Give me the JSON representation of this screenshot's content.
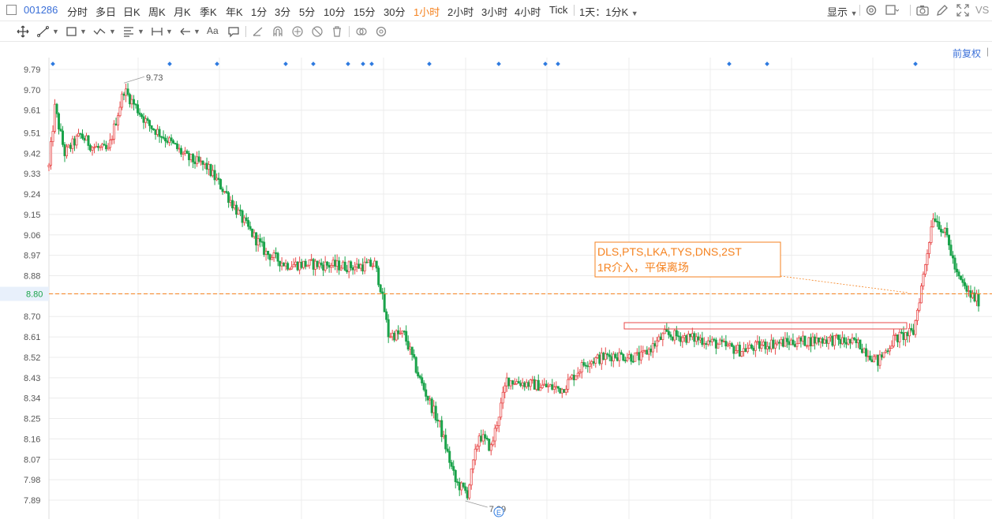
{
  "topbar": {
    "code": "001286",
    "periods": [
      "分时",
      "多日",
      "日K",
      "周K",
      "月K",
      "季K",
      "年K",
      "1分",
      "3分",
      "5分",
      "10分",
      "15分",
      "30分",
      "1小时",
      "2小时",
      "3小时",
      "4小时",
      "Tick"
    ],
    "active_period": "1小时",
    "range_label": "1天：1分K",
    "display_label": "显示",
    "vs_label": "VS"
  },
  "toolbar2": {
    "aa_label": "Aa"
  },
  "chart": {
    "restore_label": "前复权",
    "current_price_label": "8.80",
    "high_label": "9.73",
    "low_label": "7.89",
    "annotation_line1": "DLS,PTS,LKA,TYS,DNS,2ST",
    "annotation_line2": "1R介入，平保离场",
    "event_marker_label": "E"
  },
  "colors": {
    "up": "#e84a4a",
    "down": "#1aa34a",
    "accent": "#f5821f",
    "link": "#3a6fd8",
    "grid": "#ececec"
  },
  "chart_data": {
    "type": "candlestick",
    "y_ticks": [
      "9.79",
      "9.70",
      "9.61",
      "9.51",
      "9.42",
      "9.33",
      "9.24",
      "9.15",
      "9.06",
      "8.97",
      "8.88",
      "8.80",
      "8.70",
      "8.61",
      "8.52",
      "8.43",
      "8.34",
      "8.25",
      "8.16",
      "8.07",
      "7.98",
      "7.89"
    ],
    "ylim": [
      7.89,
      9.79
    ],
    "current_price": 8.8,
    "high": 9.73,
    "low": 7.89,
    "anchors": [
      [
        0,
        9.36
      ],
      [
        3,
        9.62
      ],
      [
        8,
        9.42
      ],
      [
        16,
        9.5
      ],
      [
        22,
        9.45
      ],
      [
        30,
        9.43
      ],
      [
        38,
        9.7
      ],
      [
        42,
        9.65
      ],
      [
        50,
        9.55
      ],
      [
        60,
        9.48
      ],
      [
        70,
        9.4
      ],
      [
        80,
        9.36
      ],
      [
        90,
        9.24
      ],
      [
        100,
        9.1
      ],
      [
        110,
        8.98
      ],
      [
        120,
        8.93
      ],
      [
        135,
        8.93
      ],
      [
        155,
        8.92
      ],
      [
        165,
        8.93
      ],
      [
        168,
        8.83
      ],
      [
        172,
        8.62
      ],
      [
        180,
        8.62
      ],
      [
        188,
        8.42
      ],
      [
        198,
        8.22
      ],
      [
        206,
        7.97
      ],
      [
        212,
        7.92
      ],
      [
        218,
        8.18
      ],
      [
        224,
        8.12
      ],
      [
        232,
        8.42
      ],
      [
        245,
        8.4
      ],
      [
        260,
        8.38
      ],
      [
        272,
        8.5
      ],
      [
        286,
        8.53
      ],
      [
        300,
        8.52
      ],
      [
        312,
        8.62
      ],
      [
        330,
        8.6
      ],
      [
        350,
        8.55
      ],
      [
        365,
        8.58
      ],
      [
        380,
        8.59
      ],
      [
        395,
        8.6
      ],
      [
        410,
        8.58
      ],
      [
        420,
        8.5
      ],
      [
        428,
        8.6
      ],
      [
        438,
        8.63
      ],
      [
        443,
        8.88
      ],
      [
        448,
        9.15
      ],
      [
        455,
        9.05
      ],
      [
        460,
        8.88
      ],
      [
        466,
        8.8
      ],
      [
        471,
        8.77
      ]
    ],
    "n_candles": 472
  }
}
